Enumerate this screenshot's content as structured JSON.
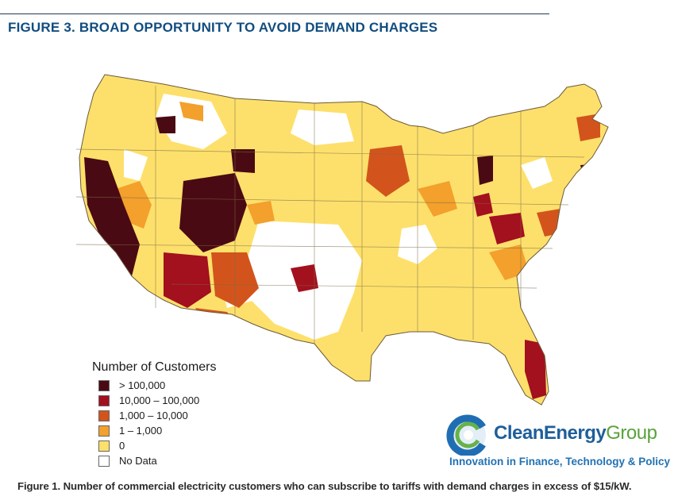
{
  "header": {
    "title": "FIGURE 3. BROAD OPPORTUNITY TO AVOID DEMAND CHARGES"
  },
  "legend": {
    "title": "Number of Customers",
    "items": [
      {
        "label": "> 100,000",
        "color": "#4a0a13"
      },
      {
        "label": "10,000 – 100,000",
        "color": "#a3101e"
      },
      {
        "label": "1,000 – 10,000",
        "color": "#d2541c"
      },
      {
        "label": "1 – 1,000",
        "color": "#f3a02c"
      },
      {
        "label": "0",
        "color": "#fde06b"
      },
      {
        "label": "No Data",
        "color": "#ffffff"
      }
    ]
  },
  "logo": {
    "name_part1": "CleanEnergy",
    "name_part2": "Group",
    "tagline": "Innovation in Finance, Technology & Policy"
  },
  "caption": "Figure 1. Number of commercial electricity customers who can subscribe to tariffs with demand charges in excess of $15/kW."
}
